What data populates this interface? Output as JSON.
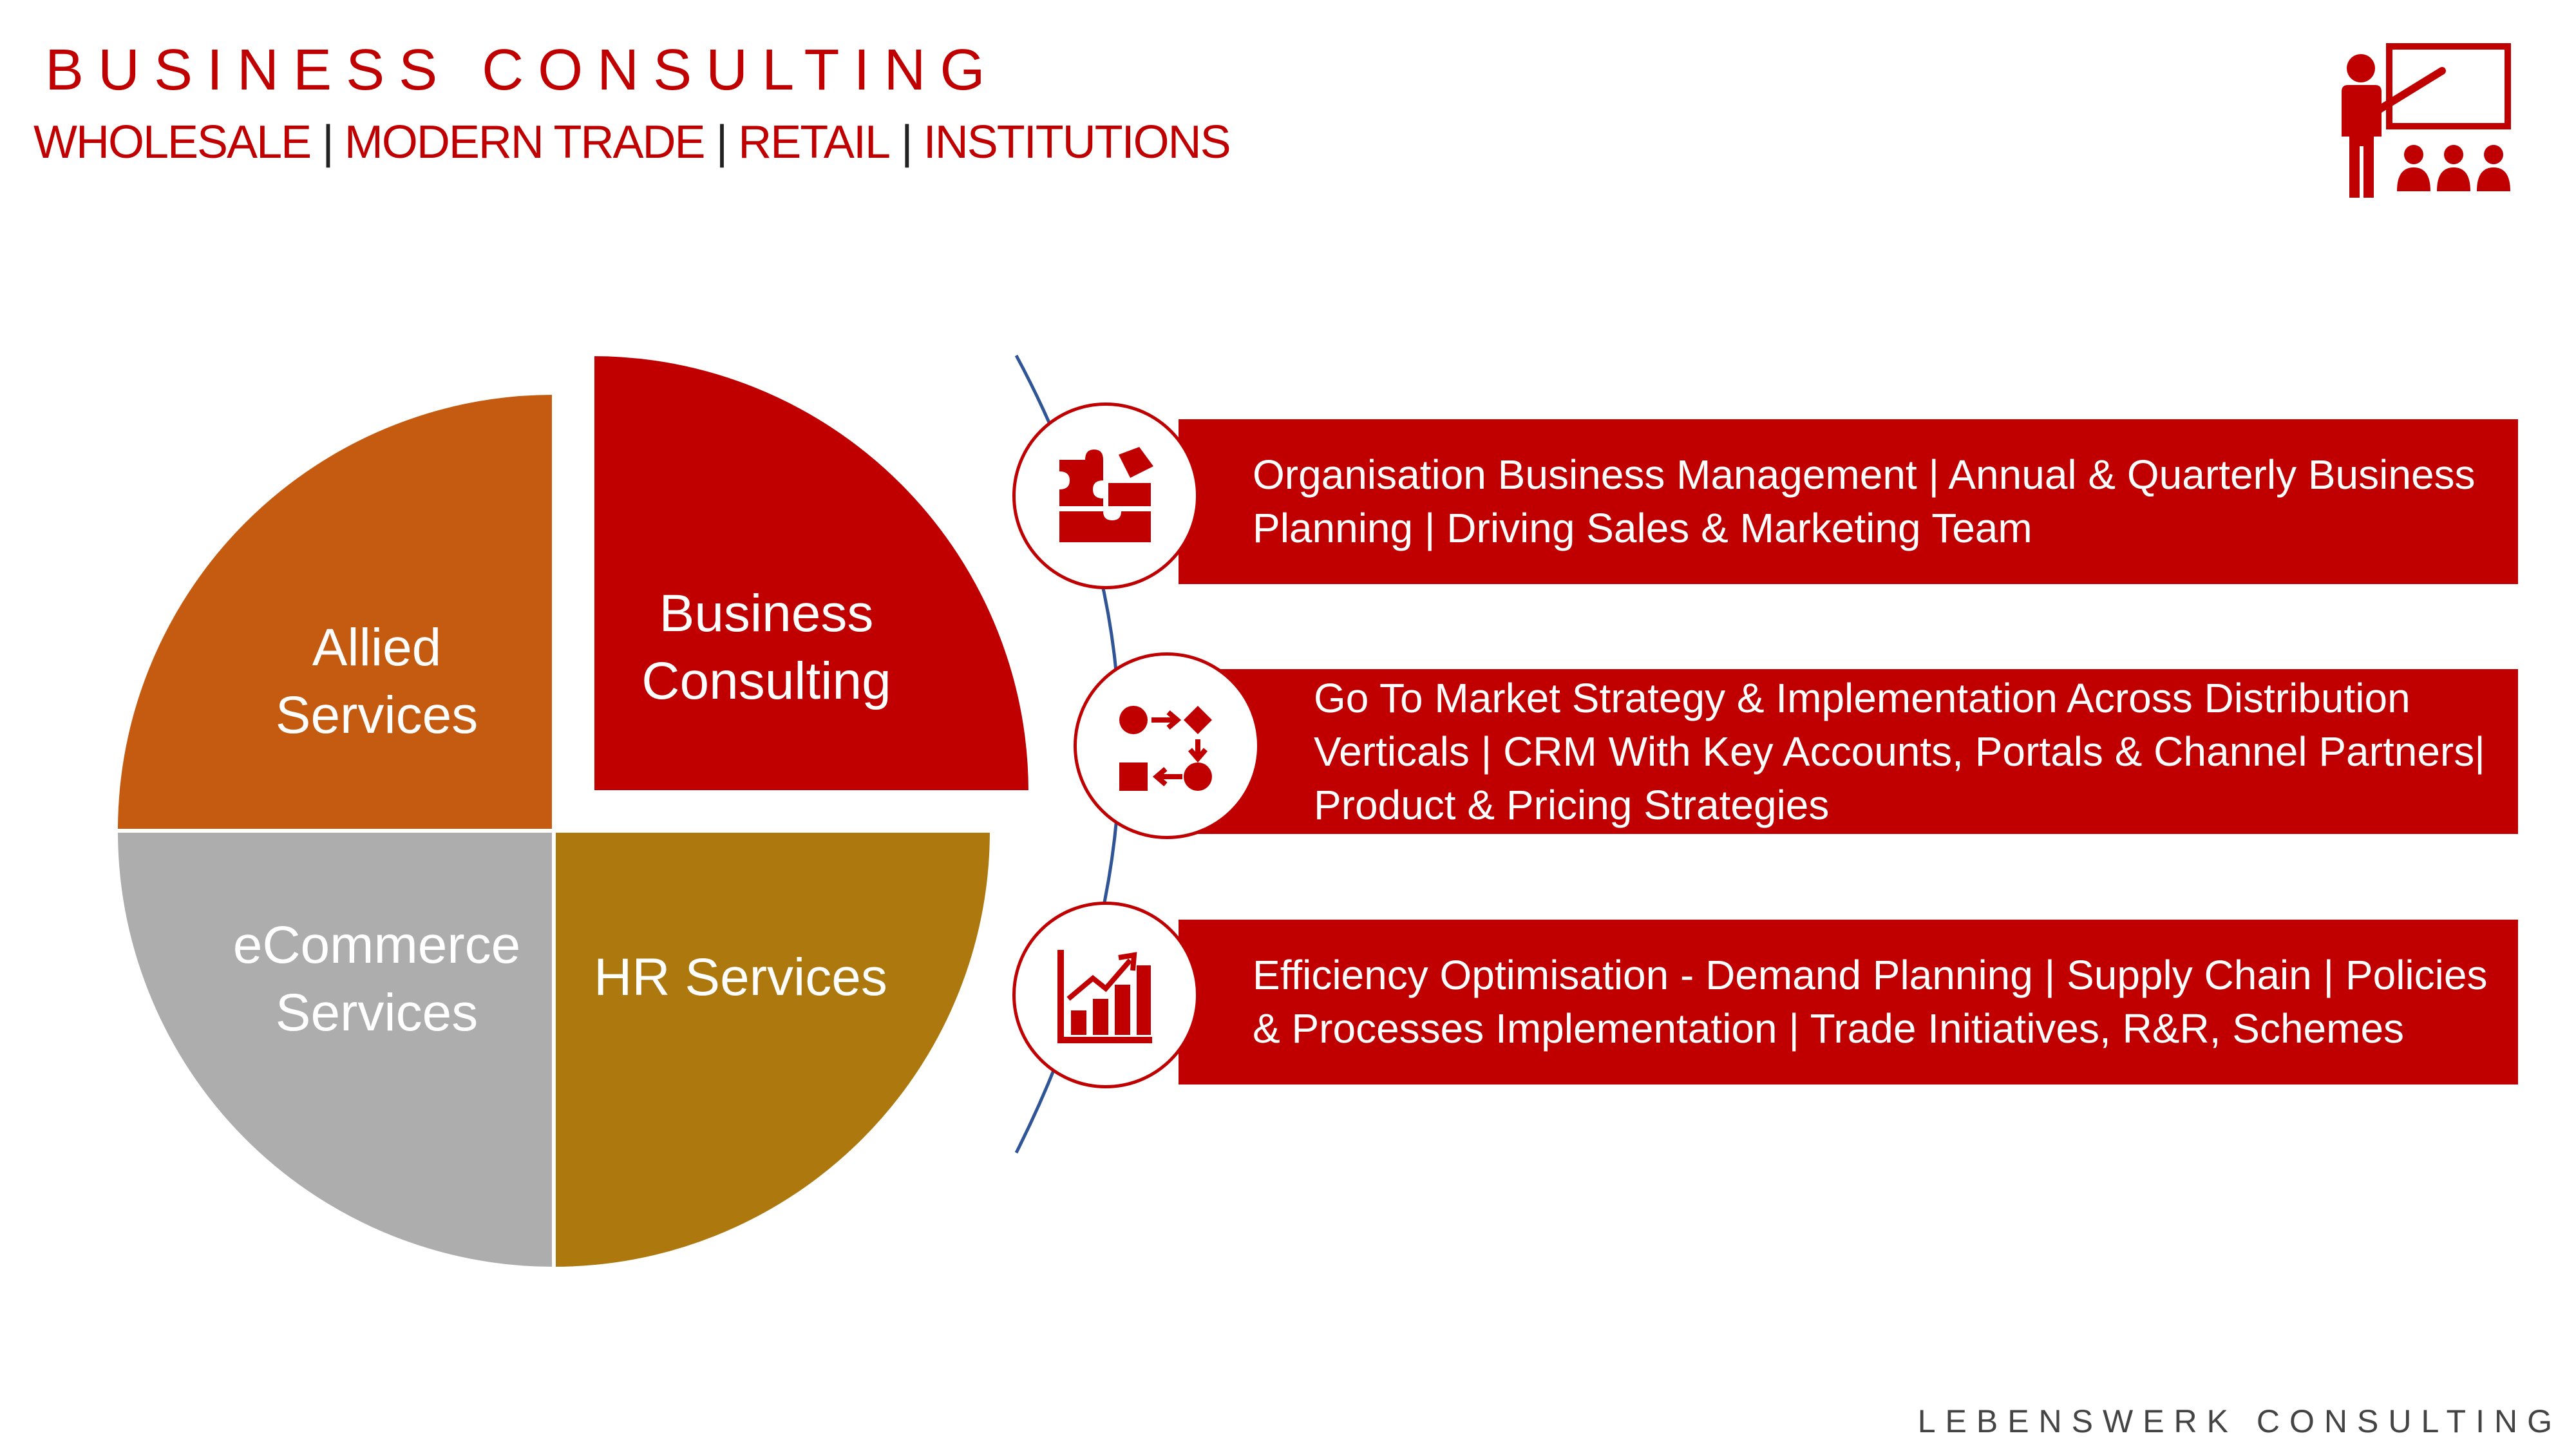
{
  "header": {
    "title": "BUSINESS CONSULTING",
    "segments": [
      "WHOLESALE",
      "MODERN TRADE",
      "RETAIL",
      "INSTITUTIONS"
    ],
    "separator": "|"
  },
  "icons": {
    "presenter": "teacher-presentation-icon",
    "item1": "puzzle-icon",
    "item2": "process-flow-icon",
    "item3": "growth-chart-icon"
  },
  "pie": {
    "allied": {
      "line1": "Allied",
      "line2": "Services",
      "color": "#c55a11"
    },
    "business": {
      "line1": "Business",
      "line2": "Consulting",
      "color": "#c00000"
    },
    "ecommerce": {
      "line1": "eCommerce",
      "line2": "Services",
      "color": "#adadad"
    },
    "hr": {
      "line1": "HR Services",
      "color": "#ad780e"
    }
  },
  "items": [
    {
      "text": "Organisation Business Management | Annual & Quarterly Business Planning | Driving Sales & Marketing Team"
    },
    {
      "text": "Go To Market Strategy & Implementation Across Distribution Verticals | CRM With Key Accounts, Portals & Channel Partners|  Product & Pricing Strategies"
    },
    {
      "text": "Efficiency Optimisation - Demand Planning | Supply Chain | Policies & Processes Implementation | Trade Initiatives, R&R, Schemes"
    }
  ],
  "footer": {
    "text": "LEBENSWERK CONSULTING"
  },
  "colors": {
    "accent": "#c00000",
    "arc": "#2f5597"
  }
}
